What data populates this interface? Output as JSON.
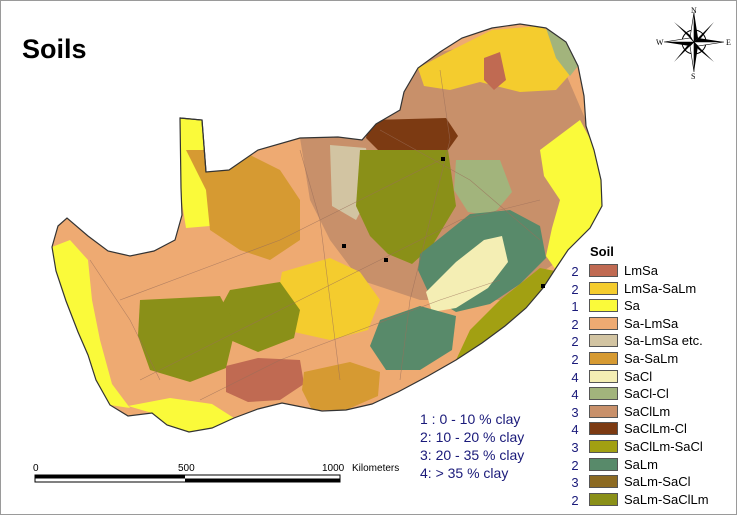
{
  "title": "Soils",
  "compass": {
    "n": "N",
    "s": "S",
    "e": "E",
    "w": "W"
  },
  "legend": {
    "title": "Soil",
    "items": [
      {
        "code": "2",
        "label": "LmSa",
        "color": "#c06a52"
      },
      {
        "code": "2",
        "label": "LmSa-SaLm",
        "color": "#f4cc2e"
      },
      {
        "code": "1",
        "label": "Sa",
        "color": "#fafa3a"
      },
      {
        "code": "2",
        "label": "Sa-LmSa",
        "color": "#eeaa72"
      },
      {
        "code": "2",
        "label": "Sa-LmSa etc.",
        "color": "#d2c4a2"
      },
      {
        "code": "2",
        "label": "Sa-SaLm",
        "color": "#d69a32"
      },
      {
        "code": "4",
        "label": "SaCl",
        "color": "#f4eeb4"
      },
      {
        "code": "4",
        "label": "SaCl-Cl",
        "color": "#a2b47c"
      },
      {
        "code": "3",
        "label": "SaClLm",
        "color": "#c8906a"
      },
      {
        "code": "4",
        "label": "SaClLm-Cl",
        "color": "#7c3a12"
      },
      {
        "code": "3",
        "label": "SaClLm-SaCl",
        "color": "#a2a012"
      },
      {
        "code": "2",
        "label": "SaLm",
        "color": "#588a6a"
      },
      {
        "code": "3",
        "label": "SaLm-SaCl",
        "color": "#8c6a22"
      },
      {
        "code": "2",
        "label": "SaLm-SaClLm",
        "color": "#8a9018"
      }
    ]
  },
  "clay_key": [
    "1 : 0 - 10 % clay",
    "2: 10 - 20 % clay",
    "3: 20 - 35 % clay",
    "4:   > 35 % clay"
  ],
  "scale": {
    "ticks": [
      "0",
      "500",
      "1000"
    ],
    "unit": "Kilometers"
  }
}
